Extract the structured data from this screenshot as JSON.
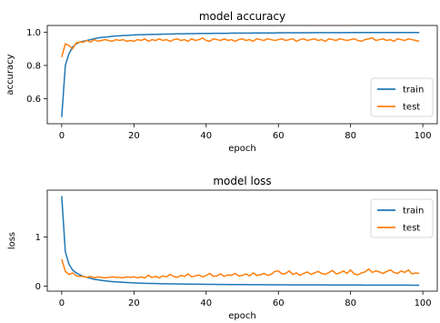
{
  "chart_data": [
    {
      "type": "line",
      "title": "model accuracy",
      "xlabel": "epoch",
      "ylabel": "accuracy",
      "xlim": [
        -4,
        104
      ],
      "ylim": [
        0.45,
        1.04
      ],
      "xticks": [
        0,
        20,
        40,
        60,
        80,
        100
      ],
      "xtick_labels": [
        "0",
        "20",
        "40",
        "60",
        "80",
        "100"
      ],
      "yticks": [
        0.6,
        0.8,
        1.0
      ],
      "ytick_labels": [
        "0.6",
        "0.8",
        "1.0"
      ],
      "grid": false,
      "legend_position": "lower-right",
      "series": [
        {
          "name": "train",
          "color": "#1f77b4",
          "x": [
            0,
            1,
            2,
            3,
            4,
            5,
            6,
            7,
            8,
            9,
            10,
            11,
            12,
            13,
            14,
            15,
            16,
            17,
            18,
            19,
            20,
            21,
            22,
            23,
            24,
            25,
            26,
            27,
            28,
            29,
            30,
            31,
            32,
            33,
            34,
            35,
            36,
            37,
            38,
            39,
            40,
            41,
            42,
            43,
            44,
            45,
            46,
            47,
            48,
            49,
            50,
            51,
            52,
            53,
            54,
            55,
            56,
            57,
            58,
            59,
            60,
            61,
            62,
            63,
            64,
            65,
            66,
            67,
            68,
            69,
            70,
            71,
            72,
            73,
            74,
            75,
            76,
            77,
            78,
            79,
            80,
            81,
            82,
            83,
            84,
            85,
            86,
            87,
            88,
            89,
            90,
            91,
            92,
            93,
            94,
            95,
            96,
            97,
            98,
            99
          ],
          "y": [
            0.49,
            0.8,
            0.87,
            0.91,
            0.93,
            0.94,
            0.945,
            0.95,
            0.955,
            0.96,
            0.965,
            0.968,
            0.97,
            0.972,
            0.975,
            0.977,
            0.978,
            0.98,
            0.98,
            0.982,
            0.983,
            0.984,
            0.985,
            0.985,
            0.986,
            0.986,
            0.987,
            0.987,
            0.988,
            0.988,
            0.989,
            0.989,
            0.99,
            0.99,
            0.99,
            0.991,
            0.991,
            0.991,
            0.992,
            0.992,
            0.992,
            0.992,
            0.993,
            0.993,
            0.993,
            0.993,
            0.993,
            0.994,
            0.994,
            0.994,
            0.994,
            0.994,
            0.994,
            0.995,
            0.995,
            0.995,
            0.995,
            0.995,
            0.995,
            0.995,
            0.996,
            0.996,
            0.996,
            0.996,
            0.996,
            0.996,
            0.996,
            0.996,
            0.996,
            0.997,
            0.997,
            0.997,
            0.997,
            0.997,
            0.997,
            0.997,
            0.997,
            0.997,
            0.997,
            0.997,
            0.998,
            0.998,
            0.998,
            0.998,
            0.998,
            0.998,
            0.998,
            0.998,
            0.998,
            0.998,
            0.998,
            0.998,
            0.998,
            0.998,
            0.998,
            0.998,
            0.998,
            0.998,
            0.998,
            0.998
          ]
        },
        {
          "name": "test",
          "color": "#ff7f0e",
          "x": [
            0,
            1,
            2,
            3,
            4,
            5,
            6,
            7,
            8,
            9,
            10,
            11,
            12,
            13,
            14,
            15,
            16,
            17,
            18,
            19,
            20,
            21,
            22,
            23,
            24,
            25,
            26,
            27,
            28,
            29,
            30,
            31,
            32,
            33,
            34,
            35,
            36,
            37,
            38,
            39,
            40,
            41,
            42,
            43,
            44,
            45,
            46,
            47,
            48,
            49,
            50,
            51,
            52,
            53,
            54,
            55,
            56,
            57,
            58,
            59,
            60,
            61,
            62,
            63,
            64,
            65,
            66,
            67,
            68,
            69,
            70,
            71,
            72,
            73,
            74,
            75,
            76,
            77,
            78,
            79,
            80,
            81,
            82,
            83,
            84,
            85,
            86,
            87,
            88,
            89,
            90,
            91,
            92,
            93,
            94,
            95,
            96,
            97,
            98,
            99
          ],
          "y": [
            0.85,
            0.93,
            0.92,
            0.9,
            0.935,
            0.94,
            0.94,
            0.95,
            0.94,
            0.955,
            0.945,
            0.95,
            0.955,
            0.95,
            0.945,
            0.955,
            0.95,
            0.955,
            0.945,
            0.95,
            0.945,
            0.955,
            0.95,
            0.96,
            0.945,
            0.955,
            0.95,
            0.96,
            0.95,
            0.955,
            0.945,
            0.955,
            0.96,
            0.95,
            0.955,
            0.945,
            0.96,
            0.95,
            0.955,
            0.965,
            0.95,
            0.945,
            0.96,
            0.955,
            0.95,
            0.96,
            0.95,
            0.955,
            0.945,
            0.955,
            0.96,
            0.95,
            0.955,
            0.945,
            0.96,
            0.955,
            0.95,
            0.96,
            0.955,
            0.95,
            0.955,
            0.96,
            0.95,
            0.955,
            0.96,
            0.945,
            0.955,
            0.96,
            0.95,
            0.955,
            0.96,
            0.95,
            0.955,
            0.945,
            0.96,
            0.955,
            0.95,
            0.96,
            0.955,
            0.95,
            0.955,
            0.96,
            0.95,
            0.945,
            0.955,
            0.96,
            0.965,
            0.95,
            0.955,
            0.96,
            0.95,
            0.955,
            0.945,
            0.96,
            0.955,
            0.95,
            0.96,
            0.955,
            0.95,
            0.945
          ]
        }
      ]
    },
    {
      "type": "line",
      "title": "model loss",
      "xlabel": "epoch",
      "ylabel": "loss",
      "xlim": [
        -4,
        104
      ],
      "ylim": [
        -0.1,
        1.95
      ],
      "xticks": [
        0,
        20,
        40,
        60,
        80,
        100
      ],
      "xtick_labels": [
        "0",
        "20",
        "40",
        "60",
        "80",
        "100"
      ],
      "yticks": [
        0,
        1
      ],
      "ytick_labels": [
        "0",
        "1"
      ],
      "grid": false,
      "legend_position": "upper-right",
      "series": [
        {
          "name": "train",
          "color": "#1f77b4",
          "x": [
            0,
            1,
            2,
            3,
            4,
            5,
            6,
            7,
            8,
            9,
            10,
            11,
            12,
            13,
            14,
            15,
            16,
            17,
            18,
            19,
            20,
            21,
            22,
            23,
            24,
            25,
            26,
            27,
            28,
            29,
            30,
            31,
            32,
            33,
            34,
            35,
            36,
            37,
            38,
            39,
            40,
            41,
            42,
            43,
            44,
            45,
            46,
            47,
            48,
            49,
            50,
            51,
            52,
            53,
            54,
            55,
            56,
            57,
            58,
            59,
            60,
            61,
            62,
            63,
            64,
            65,
            66,
            67,
            68,
            69,
            70,
            71,
            72,
            73,
            74,
            75,
            76,
            77,
            78,
            79,
            80,
            81,
            82,
            83,
            84,
            85,
            86,
            87,
            88,
            89,
            90,
            91,
            92,
            93,
            94,
            95,
            96,
            97,
            98,
            99
          ],
          "y": [
            1.83,
            0.7,
            0.45,
            0.33,
            0.27,
            0.23,
            0.2,
            0.18,
            0.16,
            0.14,
            0.13,
            0.12,
            0.11,
            0.1,
            0.095,
            0.09,
            0.085,
            0.08,
            0.075,
            0.07,
            0.068,
            0.065,
            0.062,
            0.06,
            0.058,
            0.056,
            0.054,
            0.052,
            0.05,
            0.049,
            0.048,
            0.047,
            0.046,
            0.045,
            0.044,
            0.043,
            0.042,
            0.041,
            0.04,
            0.04,
            0.039,
            0.038,
            0.038,
            0.037,
            0.036,
            0.036,
            0.035,
            0.035,
            0.034,
            0.034,
            0.033,
            0.033,
            0.032,
            0.032,
            0.032,
            0.031,
            0.031,
            0.03,
            0.03,
            0.03,
            0.029,
            0.029,
            0.029,
            0.028,
            0.028,
            0.028,
            0.027,
            0.027,
            0.027,
            0.027,
            0.026,
            0.026,
            0.026,
            0.026,
            0.025,
            0.025,
            0.025,
            0.025,
            0.025,
            0.024,
            0.024,
            0.024,
            0.024,
            0.024,
            0.023,
            0.023,
            0.023,
            0.023,
            0.023,
            0.023,
            0.022,
            0.022,
            0.022,
            0.022,
            0.022,
            0.022,
            0.022,
            0.021,
            0.021,
            0.021
          ]
        },
        {
          "name": "test",
          "color": "#ff7f0e",
          "x": [
            0,
            1,
            2,
            3,
            4,
            5,
            6,
            7,
            8,
            9,
            10,
            11,
            12,
            13,
            14,
            15,
            16,
            17,
            18,
            19,
            20,
            21,
            22,
            23,
            24,
            25,
            26,
            27,
            28,
            29,
            30,
            31,
            32,
            33,
            34,
            35,
            36,
            37,
            38,
            39,
            40,
            41,
            42,
            43,
            44,
            45,
            46,
            47,
            48,
            49,
            50,
            51,
            52,
            53,
            54,
            55,
            56,
            57,
            58,
            59,
            60,
            61,
            62,
            63,
            64,
            65,
            66,
            67,
            68,
            69,
            70,
            71,
            72,
            73,
            74,
            75,
            76,
            77,
            78,
            79,
            80,
            81,
            82,
            83,
            84,
            85,
            86,
            87,
            88,
            89,
            90,
            91,
            92,
            93,
            94,
            95,
            96,
            97,
            98,
            99
          ],
          "y": [
            0.55,
            0.3,
            0.24,
            0.27,
            0.21,
            0.2,
            0.2,
            0.18,
            0.2,
            0.17,
            0.19,
            0.18,
            0.17,
            0.18,
            0.19,
            0.18,
            0.18,
            0.17,
            0.19,
            0.18,
            0.19,
            0.17,
            0.19,
            0.17,
            0.22,
            0.18,
            0.2,
            0.17,
            0.21,
            0.19,
            0.24,
            0.2,
            0.18,
            0.22,
            0.2,
            0.25,
            0.19,
            0.21,
            0.23,
            0.19,
            0.22,
            0.26,
            0.2,
            0.21,
            0.25,
            0.2,
            0.23,
            0.22,
            0.26,
            0.21,
            0.22,
            0.25,
            0.21,
            0.27,
            0.22,
            0.23,
            0.26,
            0.22,
            0.24,
            0.3,
            0.31,
            0.25,
            0.26,
            0.31,
            0.24,
            0.27,
            0.22,
            0.26,
            0.29,
            0.24,
            0.27,
            0.3,
            0.26,
            0.24,
            0.28,
            0.32,
            0.25,
            0.27,
            0.31,
            0.26,
            0.33,
            0.25,
            0.23,
            0.27,
            0.29,
            0.35,
            0.28,
            0.31,
            0.29,
            0.26,
            0.3,
            0.33,
            0.28,
            0.26,
            0.31,
            0.28,
            0.33,
            0.25,
            0.27,
            0.26
          ]
        }
      ]
    }
  ]
}
